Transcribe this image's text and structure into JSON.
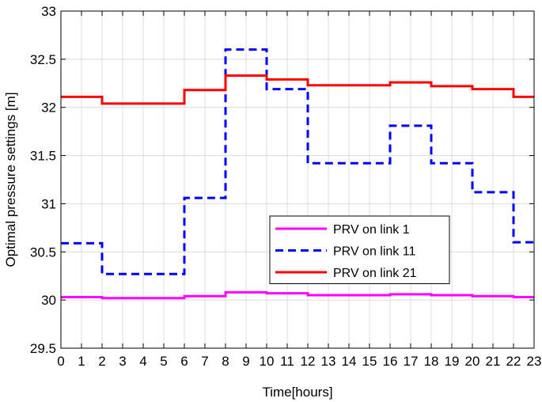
{
  "chart_data": {
    "type": "line",
    "step": true,
    "title": "",
    "xlabel": "Time[hours]",
    "ylabel": "Optimal pressure settings [m]",
    "xlim": [
      0,
      23
    ],
    "ylim": [
      29.5,
      33
    ],
    "xticks": [
      0,
      1,
      2,
      3,
      4,
      5,
      6,
      7,
      8,
      9,
      10,
      11,
      12,
      13,
      14,
      15,
      16,
      17,
      18,
      19,
      20,
      21,
      22,
      23
    ],
    "yticks": [
      29.5,
      30,
      30.5,
      31,
      31.5,
      32,
      32.5,
      33
    ],
    "ytick_labels": [
      "29.5",
      "30",
      "30.5",
      "31",
      "31.5",
      "32",
      "32.5",
      "33"
    ],
    "grid": true,
    "legend_position": "center-right",
    "series": [
      {
        "name": "PRV on link 1",
        "color": "#ff00ff",
        "dash": "solid",
        "x": [
          0,
          2,
          6,
          8,
          10,
          12,
          16,
          18,
          20,
          22,
          23
        ],
        "values": [
          30.03,
          30.02,
          30.04,
          30.08,
          30.07,
          30.05,
          30.06,
          30.05,
          30.04,
          30.03,
          30.03
        ]
      },
      {
        "name": "PRV on link 11",
        "color": "#0000ff",
        "dash": "dashed",
        "x": [
          0,
          2,
          6,
          8,
          10,
          12,
          16,
          18,
          20,
          22,
          23
        ],
        "values": [
          30.59,
          30.27,
          31.06,
          32.6,
          32.19,
          31.42,
          31.81,
          31.42,
          31.12,
          30.6,
          30.6
        ]
      },
      {
        "name": "PRV on link 21",
        "color": "#ff0000",
        "dash": "solid",
        "x": [
          0,
          2,
          6,
          8,
          10,
          12,
          16,
          18,
          20,
          22,
          23
        ],
        "values": [
          32.11,
          32.04,
          32.18,
          32.33,
          32.29,
          32.23,
          32.26,
          32.22,
          32.19,
          32.11,
          32.11
        ]
      }
    ]
  }
}
